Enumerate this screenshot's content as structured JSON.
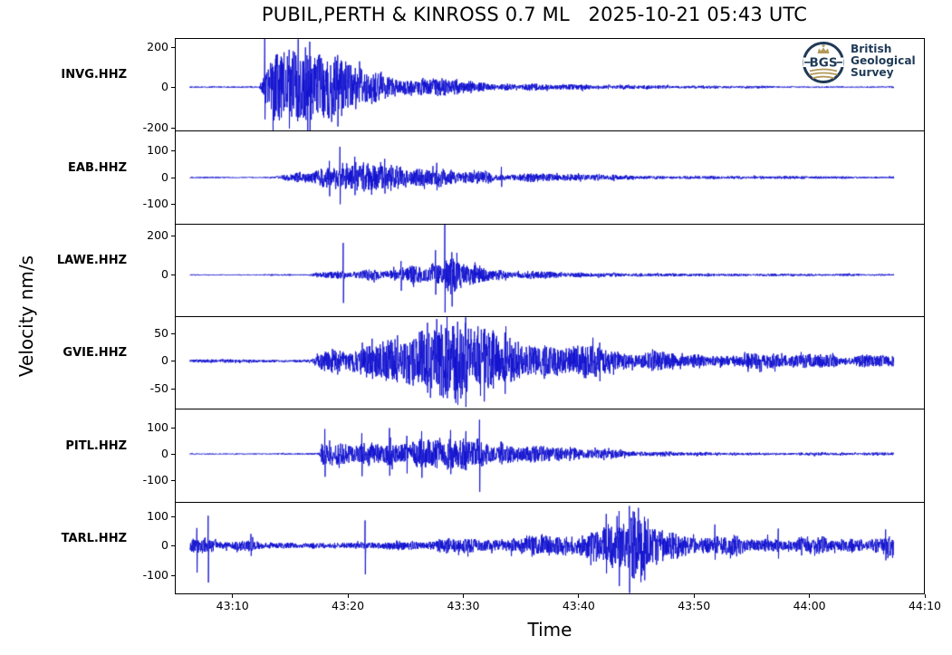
{
  "figure": {
    "background": "#ffffff",
    "trace_color": "#1111cf",
    "axis_color": "#000000"
  },
  "logo": {
    "abbr": "BGS",
    "name_lines": [
      "British",
      "Geological",
      "Survey"
    ],
    "navy": "#1f3a57",
    "gold": "#b3995a"
  },
  "chart_data": {
    "type": "line",
    "subtype": "seismogram-multipanel",
    "title": "PUBIL,PERTH & KINROSS 0.7 ML   2025-10-21 05:43 UTC",
    "xlabel": "Time",
    "ylabel": "Velocity nm/s",
    "amplitude_units": "nm/s",
    "x_tick_labels": [
      "43:10",
      "43:20",
      "43:30",
      "43:40",
      "43:50",
      "44:00",
      "44:10"
    ],
    "x_tick_seconds": [
      10,
      20,
      30,
      40,
      50,
      60,
      70
    ],
    "xlim_seconds": [
      5,
      70
    ],
    "trace_time_span_seconds": [
      6.3,
      67.3
    ],
    "grid": false,
    "legend": "none",
    "panels": [
      {
        "station": "INVG.HHZ",
        "ylim": [
          -215,
          243
        ],
        "yticks": [
          200,
          0,
          -200
        ],
        "seed": 11,
        "envelope": [
          [
            6.3,
            3
          ],
          [
            12.3,
            3
          ],
          [
            12.5,
            40
          ],
          [
            12.8,
            90
          ],
          [
            13.2,
            130
          ],
          [
            14,
            150
          ],
          [
            15,
            130
          ],
          [
            15.6,
            160
          ],
          [
            16.3,
            145
          ],
          [
            17,
            130
          ],
          [
            18,
            115
          ],
          [
            19,
            120
          ],
          [
            20,
            95
          ],
          [
            21,
            80
          ],
          [
            22,
            72
          ],
          [
            23.5,
            60
          ],
          [
            25,
            52
          ],
          [
            26.5,
            45
          ],
          [
            28,
            38
          ],
          [
            30,
            30
          ],
          [
            32,
            24
          ],
          [
            34,
            19
          ],
          [
            36,
            15
          ],
          [
            38.5,
            12
          ],
          [
            41,
            10
          ],
          [
            44,
            8
          ],
          [
            47,
            7
          ],
          [
            50,
            6
          ],
          [
            54,
            5
          ],
          [
            58,
            4.5
          ],
          [
            62,
            4
          ],
          [
            67.3,
            4
          ]
        ],
        "spikes": [
          [
            12.8,
            242,
            -160
          ],
          [
            13.5,
            100,
            -220
          ],
          [
            14.9,
            185,
            -205
          ],
          [
            15.7,
            238,
            -150
          ],
          [
            16.7,
            225,
            -215
          ],
          [
            18.9,
            150,
            -120
          ]
        ]
      },
      {
        "station": "EAB.HHZ",
        "ylim": [
          -173,
          176
        ],
        "yticks": [
          100,
          0,
          -100
        ],
        "seed": 22,
        "envelope": [
          [
            6.3,
            2.5
          ],
          [
            13.6,
            2.5
          ],
          [
            14,
            8
          ],
          [
            15,
            18
          ],
          [
            16,
            26
          ],
          [
            17,
            30
          ],
          [
            18,
            34
          ],
          [
            19,
            40
          ],
          [
            20,
            42
          ],
          [
            21,
            44
          ],
          [
            22,
            40
          ],
          [
            23,
            43
          ],
          [
            24,
            39
          ],
          [
            25,
            36
          ],
          [
            26,
            32
          ],
          [
            27.5,
            28
          ],
          [
            29,
            25
          ],
          [
            31,
            21
          ],
          [
            33,
            17
          ],
          [
            35,
            14
          ],
          [
            37.5,
            11
          ],
          [
            40,
            9.5
          ],
          [
            43,
            8
          ],
          [
            46,
            7
          ],
          [
            50,
            6
          ],
          [
            54,
            5
          ],
          [
            58,
            4.5
          ],
          [
            62,
            4
          ],
          [
            67.3,
            3.5
          ]
        ],
        "spikes": [
          [
            19.3,
            115,
            -100
          ],
          [
            18.4,
            62,
            -70
          ],
          [
            20.6,
            78,
            -66
          ],
          [
            23.2,
            70,
            -60
          ],
          [
            27.7,
            55,
            -48
          ],
          [
            33.3,
            40,
            -35
          ]
        ]
      },
      {
        "station": "LAWE.HHZ",
        "ylim": [
          -209,
          259
        ],
        "yticks": [
          200,
          0
        ],
        "seed": 33,
        "envelope": [
          [
            6.3,
            3
          ],
          [
            16.5,
            3
          ],
          [
            17,
            10
          ],
          [
            18,
            14
          ],
          [
            19,
            15
          ],
          [
            20,
            18
          ],
          [
            21,
            20
          ],
          [
            22,
            25
          ],
          [
            23,
            30
          ],
          [
            24,
            40
          ],
          [
            25,
            44
          ],
          [
            25.8,
            38
          ],
          [
            26.5,
            48
          ],
          [
            27.3,
            62
          ],
          [
            28,
            72
          ],
          [
            28.6,
            80
          ],
          [
            29.2,
            68
          ],
          [
            30,
            50
          ],
          [
            31,
            38
          ],
          [
            32,
            30
          ],
          [
            33,
            24
          ],
          [
            34.5,
            19
          ],
          [
            36,
            15
          ],
          [
            38,
            12
          ],
          [
            40.5,
            10
          ],
          [
            43,
            8.5
          ],
          [
            46,
            7
          ],
          [
            50,
            6
          ],
          [
            55,
            5
          ],
          [
            60,
            4.5
          ],
          [
            67.3,
            4
          ]
        ],
        "spikes": [
          [
            19.6,
            162,
            -142
          ],
          [
            27.6,
            125,
            -100
          ],
          [
            28.4,
            258,
            -190
          ],
          [
            29,
            115,
            -160
          ],
          [
            24.6,
            70,
            -80
          ]
        ]
      },
      {
        "station": "GVIE.HHZ",
        "ylim": [
          -87,
          82
        ],
        "yticks": [
          50,
          0,
          -50
        ],
        "seed": 44,
        "envelope": [
          [
            6.3,
            2.5
          ],
          [
            16.9,
            2.5
          ],
          [
            17.3,
            10
          ],
          [
            18,
            14
          ],
          [
            19,
            18
          ],
          [
            20,
            22
          ],
          [
            21,
            24
          ],
          [
            22,
            27
          ],
          [
            23,
            30
          ],
          [
            24,
            32
          ],
          [
            25,
            35
          ],
          [
            26,
            40
          ],
          [
            27,
            48
          ],
          [
            28,
            55
          ],
          [
            29,
            60
          ],
          [
            29.8,
            64
          ],
          [
            30.6,
            58
          ],
          [
            31.5,
            50
          ],
          [
            32.5,
            46
          ],
          [
            34,
            38
          ],
          [
            35.5,
            33
          ],
          [
            37,
            30
          ],
          [
            39,
            26
          ],
          [
            41,
            23
          ],
          [
            43,
            20
          ],
          [
            45,
            17.5
          ],
          [
            48,
            15
          ],
          [
            51,
            13
          ],
          [
            54,
            11.5
          ],
          [
            57,
            10.5
          ],
          [
            60,
            9.5
          ],
          [
            63,
            9
          ],
          [
            67.3,
            8.5
          ]
        ],
        "spikes": [
          [
            26.9,
            70,
            -58
          ],
          [
            28.6,
            83,
            -68
          ],
          [
            29.5,
            72,
            -80
          ],
          [
            30.2,
            80,
            -84
          ],
          [
            31.8,
            58,
            -74
          ],
          [
            33.6,
            52,
            -60
          ]
        ]
      },
      {
        "station": "PITL.HHZ",
        "ylim": [
          -185,
          175
        ],
        "yticks": [
          100,
          0,
          -100
        ],
        "seed": 55,
        "envelope": [
          [
            6.3,
            2.5
          ],
          [
            17.5,
            2.5
          ],
          [
            17.8,
            40
          ],
          [
            18.2,
            55
          ],
          [
            18.8,
            46
          ],
          [
            19.5,
            40
          ],
          [
            20.5,
            44
          ],
          [
            21.5,
            41
          ],
          [
            22.5,
            46
          ],
          [
            23.5,
            48
          ],
          [
            24.5,
            42
          ],
          [
            25.5,
            44
          ],
          [
            26.5,
            47
          ],
          [
            27.5,
            44
          ],
          [
            28.5,
            48
          ],
          [
            29.5,
            46
          ],
          [
            30.5,
            52
          ],
          [
            31.3,
            58
          ],
          [
            32,
            50
          ],
          [
            33,
            44
          ],
          [
            34,
            38
          ],
          [
            35,
            33
          ],
          [
            36,
            28
          ],
          [
            37,
            24
          ],
          [
            38.5,
            20
          ],
          [
            40,
            17
          ],
          [
            42,
            13.5
          ],
          [
            44,
            11
          ],
          [
            46.5,
            9
          ],
          [
            49,
            7.5
          ],
          [
            52,
            6.5
          ],
          [
            56,
            5.5
          ],
          [
            60,
            5
          ],
          [
            64,
            4.5
          ],
          [
            67.3,
            4.5
          ]
        ],
        "spikes": [
          [
            18,
            96,
            -88
          ],
          [
            21.2,
            80,
            -86
          ],
          [
            23.6,
            100,
            -84
          ],
          [
            25.1,
            70,
            -75
          ],
          [
            26.4,
            88,
            -92
          ],
          [
            28.9,
            92,
            -78
          ],
          [
            31.4,
            132,
            -146
          ]
        ]
      },
      {
        "station": "TARL.HHZ",
        "ylim": [
          -166,
          149
        ],
        "yticks": [
          100,
          0,
          -100
        ],
        "seed": 66,
        "envelope": [
          [
            6.3,
            16
          ],
          [
            6.8,
            22
          ],
          [
            7.6,
            26
          ],
          [
            8.4,
            22
          ],
          [
            9.2,
            16
          ],
          [
            10,
            13
          ],
          [
            11,
            17
          ],
          [
            11.8,
            21
          ],
          [
            12.6,
            15
          ],
          [
            13.5,
            12
          ],
          [
            15,
            12.5
          ],
          [
            17,
            12
          ],
          [
            19,
            12.5
          ],
          [
            21,
            13
          ],
          [
            22.5,
            12.5
          ],
          [
            24,
            12
          ],
          [
            25.5,
            13
          ],
          [
            26.5,
            17
          ],
          [
            27.5,
            24
          ],
          [
            28.5,
            28
          ],
          [
            29.5,
            30
          ],
          [
            30.5,
            28
          ],
          [
            31.5,
            30
          ],
          [
            32.5,
            28
          ],
          [
            33.5,
            30
          ],
          [
            34.5,
            29
          ],
          [
            35.5,
            31
          ],
          [
            36.5,
            32
          ],
          [
            37.5,
            30
          ],
          [
            38.5,
            27
          ],
          [
            39.5,
            26
          ],
          [
            40.3,
            32
          ],
          [
            41,
            48
          ],
          [
            42,
            62
          ],
          [
            43,
            78
          ],
          [
            44,
            92
          ],
          [
            44.8,
            98
          ],
          [
            45.6,
            86
          ],
          [
            46.5,
            72
          ],
          [
            47.5,
            62
          ],
          [
            48.5,
            52
          ],
          [
            49.5,
            42
          ],
          [
            50.5,
            36
          ],
          [
            51.5,
            33
          ],
          [
            53,
            30
          ],
          [
            54.5,
            28
          ],
          [
            56,
            30
          ],
          [
            57.5,
            26
          ],
          [
            59,
            24
          ],
          [
            60.5,
            26
          ],
          [
            62,
            22
          ],
          [
            63.5,
            24
          ],
          [
            65,
            22
          ],
          [
            66.2,
            27
          ],
          [
            67.3,
            28
          ]
        ],
        "spikes": [
          [
            6.9,
            60,
            -92
          ],
          [
            7.9,
            102,
            -126
          ],
          [
            11.6,
            40,
            -35
          ],
          [
            21.5,
            86,
            -98
          ],
          [
            42.4,
            108,
            -95
          ],
          [
            43.5,
            118,
            -138
          ],
          [
            44.4,
            135,
            -162
          ],
          [
            45.7,
            98,
            -118
          ],
          [
            51.8,
            72,
            -48
          ],
          [
            57.3,
            58,
            -44
          ],
          [
            66.6,
            55,
            -50
          ]
        ]
      }
    ]
  }
}
